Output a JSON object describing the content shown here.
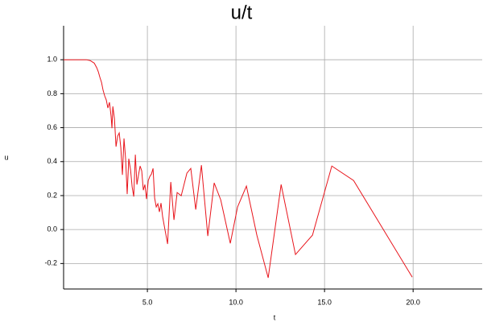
{
  "chart_data": {
    "type": "line",
    "title": "u/t",
    "x_label": "t",
    "y_label": "u",
    "xlim": [
      0.27,
      23.9
    ],
    "ylim": [
      -0.35,
      1.2
    ],
    "xticks": [
      {
        "value": 5,
        "label": "5.0"
      },
      {
        "value": 10,
        "label": "10.0"
      },
      {
        "value": 15,
        "label": "15.0"
      },
      {
        "value": 20,
        "label": "20.0"
      }
    ],
    "yticks": [
      -0.2,
      {
        "value": 0,
        "label": "0.0"
      },
      0.2,
      0.4,
      0.6,
      0.8,
      {
        "value": 1,
        "label": "1.0"
      }
    ],
    "grid": true,
    "series": [
      {
        "color": "#e8141b",
        "x": [
          0.27,
          1.55,
          1.77,
          2.0,
          2.14,
          2.23,
          2.32,
          2.41,
          2.5,
          2.59,
          2.68,
          2.77,
          2.86,
          2.95,
          3.0,
          3.05,
          3.14,
          3.23,
          3.32,
          3.41,
          3.5,
          3.59,
          3.68,
          3.77,
          3.86,
          3.95,
          4.05,
          4.14,
          4.23,
          4.32,
          4.41,
          4.5,
          4.59,
          4.68,
          4.77,
          4.86,
          4.95,
          5.05,
          5.14,
          5.23,
          5.32,
          5.41,
          5.5,
          5.59,
          5.68,
          5.77,
          5.86,
          6.0,
          6.14,
          6.32,
          6.5,
          6.68,
          6.91,
          7.23,
          7.45,
          7.73,
          8.05,
          8.41,
          8.77,
          9.14,
          9.68,
          10.09,
          10.59,
          11.18,
          11.82,
          12.55,
          13.36,
          14.32,
          15.41,
          16.64,
          19.95
        ],
        "values": [
          1.0,
          1.0,
          0.995,
          0.98,
          0.953,
          0.929,
          0.896,
          0.867,
          0.82,
          0.787,
          0.763,
          0.716,
          0.749,
          0.668,
          0.597,
          0.725,
          0.654,
          0.488,
          0.55,
          0.569,
          0.483,
          0.322,
          0.536,
          0.417,
          0.209,
          0.417,
          0.351,
          0.251,
          0.194,
          0.441,
          0.265,
          0.322,
          0.374,
          0.346,
          0.232,
          0.265,
          0.18,
          0.289,
          0.313,
          0.327,
          0.36,
          0.185,
          0.133,
          0.152,
          0.104,
          0.156,
          0.076,
          -0.005,
          -0.085,
          0.28,
          0.057,
          0.218,
          0.199,
          0.332,
          0.36,
          0.118,
          0.379,
          -0.038,
          0.275,
          0.175,
          -0.081,
          0.133,
          0.256,
          -0.033,
          -0.284,
          0.265,
          -0.147,
          -0.033,
          0.374,
          0.289,
          -0.28
        ]
      }
    ]
  }
}
